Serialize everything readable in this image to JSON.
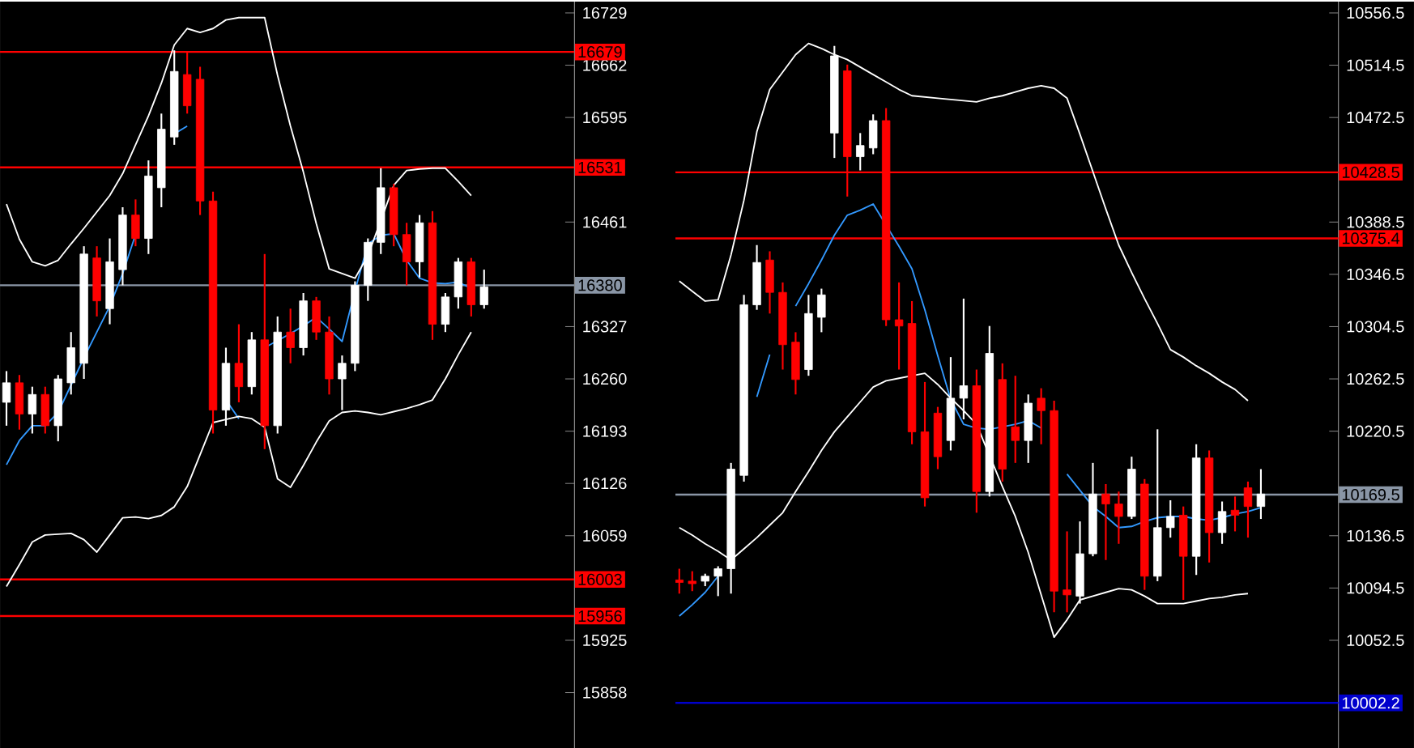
{
  "chart_data": [
    {
      "type": "candlestick",
      "categories": [
        null,
        null,
        null,
        null,
        null,
        null,
        null,
        null,
        null,
        null,
        null,
        null,
        null,
        null,
        null,
        null,
        null,
        null,
        null,
        null,
        null,
        null,
        null,
        null,
        null,
        null,
        null,
        null,
        null,
        null,
        null,
        null,
        null,
        null,
        null,
        null,
        null,
        null
      ],
      "ohlc": [
        [
          16230,
          16270,
          16200,
          16255
        ],
        [
          16255,
          16265,
          16195,
          16215
        ],
        [
          16215,
          16250,
          16190,
          16240
        ],
        [
          16240,
          16250,
          16190,
          16200
        ],
        [
          16200,
          16265,
          16180,
          16260
        ],
        [
          16255,
          16320,
          16240,
          16300
        ],
        [
          16280,
          16430,
          16260,
          16420
        ],
        [
          16415,
          16430,
          16340,
          16360
        ],
        [
          16350,
          16440,
          16330,
          16410
        ],
        [
          16400,
          16480,
          16380,
          16470
        ],
        [
          16470,
          16490,
          16430,
          16440
        ],
        [
          16440,
          16540,
          16420,
          16520
        ],
        [
          16505,
          16600,
          16480,
          16580
        ],
        [
          16570,
          16681,
          16560,
          16654
        ],
        [
          16650,
          16680,
          16600,
          16610
        ],
        [
          16644,
          16660,
          16470,
          16488
        ],
        [
          16488,
          16500,
          16190,
          16220
        ],
        [
          16220,
          16300,
          16200,
          16280
        ],
        [
          16280,
          16330,
          16230,
          16250
        ],
        [
          16250,
          16320,
          16240,
          16310
        ],
        [
          16310,
          16420,
          16170,
          16200
        ],
        [
          16200,
          16340,
          16190,
          16320
        ],
        [
          16320,
          16350,
          16280,
          16300
        ],
        [
          16300,
          16370,
          16290,
          16360
        ],
        [
          16360,
          16365,
          16310,
          16320
        ],
        [
          16320,
          16340,
          16240,
          16260
        ],
        [
          16260,
          16290,
          16220,
          16280
        ],
        [
          16280,
          16385,
          16270,
          16380
        ],
        [
          16380,
          16440,
          16360,
          16435
        ],
        [
          16435,
          16530,
          16420,
          16505
        ],
        [
          16505,
          16510,
          16430,
          16445
        ],
        [
          16445,
          16460,
          16380,
          16410
        ],
        [
          16410,
          16470,
          16390,
          16460
        ],
        [
          16460,
          16475,
          16310,
          16330
        ],
        [
          16330,
          16370,
          16320,
          16365
        ],
        [
          16365,
          16415,
          16350,
          16410
        ],
        [
          16410,
          16415,
          16340,
          16355
        ],
        [
          16355,
          16400,
          16350,
          16378
        ]
      ],
      "colors": [
        "#ffffff",
        "#ff0000",
        "#ffffff",
        "#ff0000",
        "#ffffff",
        "#ffffff",
        "#ffffff",
        "#ff0000",
        "#ffffff",
        "#ffffff",
        "#ff0000",
        "#ffffff",
        "#ffffff",
        "#ffffff",
        "#ff0000",
        "#ff0000",
        "#ff0000",
        "#ffffff",
        "#ff0000",
        "#ffffff",
        "#ff0000",
        "#ffffff",
        "#ff0000",
        "#ffffff",
        "#ff0000",
        "#ff0000",
        "#ffffff",
        "#ffffff",
        "#ffffff",
        "#ffffff",
        "#ff0000",
        "#ff0000",
        "#ffffff",
        "#ff0000",
        "#ffffff",
        "#ffffff",
        "#ff0000",
        "#ffffff"
      ],
      "series": [
        {
          "type": "line",
          "color": "#3399ff",
          "values": [
            16150,
            16181,
            16200,
            16200,
            16217,
            16252,
            16287,
            16320,
            16353,
            16395,
            16445,
            null,
            null,
            16574,
            16584,
            null,
            null,
            16233,
            16209,
            null,
            16300,
            16309,
            16318,
            16328,
            16339,
            16324,
            16308,
            16373,
            16433,
            16444,
            16446,
            16412,
            16389,
            16383,
            16382,
            16384,
            16376,
            null
          ]
        },
        {
          "type": "line",
          "color": "#ffffff",
          "values": [
            16484,
            16439,
            16410,
            16405,
            16412,
            16433,
            16453,
            16474,
            16495,
            16523,
            16560,
            16597,
            16639,
            16688,
            16709,
            16704,
            16709,
            16720,
            16723,
            16723,
            16723,
            16649,
            16584,
            16525,
            16459,
            16401,
            16395,
            16389,
            16418,
            16463,
            16508,
            16527,
            16529,
            16530,
            16530,
            16513,
            16495,
            null
          ]
        },
        {
          "type": "line",
          "color": "#ffffff",
          "values": [
            15994,
            16022,
            16051,
            16060,
            16061,
            16062,
            16054,
            16038,
            16060,
            16082,
            16083,
            16081,
            16085,
            16096,
            16122,
            16163,
            16204,
            16208,
            16212,
            16209,
            16198,
            16132,
            16121,
            16149,
            16179,
            16206,
            16217,
            16219,
            16217,
            16214,
            16218,
            16222,
            16227,
            16233,
            16260,
            16291,
            16320,
            null
          ]
        }
      ],
      "ylim": [
        15787,
        16743.5
      ],
      "yticks": [
        16729,
        16662,
        16595,
        16461,
        16327,
        16260,
        16193,
        16126,
        16059,
        15925,
        15858
      ],
      "ref_lines": [
        {
          "axis": "y",
          "value": 16679,
          "label": "16679",
          "color": "#ff0000"
        },
        {
          "axis": "y",
          "value": 16531,
          "label": "16531",
          "color": "#ff0000"
        },
        {
          "axis": "y",
          "value": 16380,
          "label": "16380",
          "color": "#8a96a6"
        },
        {
          "axis": "y",
          "value": 16003,
          "label": "16003",
          "color": "#ff0000"
        },
        {
          "axis": "y",
          "value": 15956,
          "label": "15956",
          "color": "#ff0000"
        }
      ],
      "tick_labels": "y"
    },
    {
      "type": "candlestick",
      "categories": [
        null,
        null,
        null,
        null,
        null,
        null,
        null,
        null,
        null,
        null,
        null,
        null,
        null,
        null,
        null,
        null,
        null,
        null,
        null,
        null,
        null,
        null,
        null,
        null,
        null,
        null,
        null,
        null,
        null,
        null,
        null,
        null,
        null,
        null,
        null,
        null,
        null,
        null,
        null,
        null,
        null,
        null,
        null,
        null,
        null,
        null
      ],
      "ohlc": [
        [
          10101,
          10110,
          10090,
          10099
        ],
        [
          10100,
          10108,
          10092,
          10098
        ],
        [
          10100,
          10106,
          10096,
          10104
        ],
        [
          10104,
          10112,
          10088,
          10110
        ],
        [
          10110,
          10195,
          10090,
          10190
        ],
        [
          10185,
          10330,
          10180,
          10322
        ],
        [
          10322,
          10370,
          10318,
          10356
        ],
        [
          10358,
          10365,
          10315,
          10332
        ],
        [
          10332,
          10340,
          10270,
          10290
        ],
        [
          10292,
          10300,
          10250,
          10262
        ],
        [
          10270,
          10330,
          10265,
          10315
        ],
        [
          10312,
          10335,
          10300,
          10330
        ],
        [
          10460,
          10530,
          10440,
          10522
        ],
        [
          10510,
          10515,
          10409,
          10441
        ],
        [
          10441,
          10460,
          10430,
          10450
        ],
        [
          10448,
          10475,
          10443,
          10470
        ],
        [
          10470,
          10480,
          10305,
          10310
        ],
        [
          10310,
          10340,
          10270,
          10305
        ],
        [
          10307,
          10325,
          10210,
          10220
        ],
        [
          10220,
          10260,
          10160,
          10167
        ],
        [
          10235,
          10240,
          10190,
          10200
        ],
        [
          10213,
          10280,
          10205,
          10247
        ],
        [
          10247,
          10327,
          10230,
          10257
        ],
        [
          10257,
          10270,
          10155,
          10172
        ],
        [
          10172,
          10305,
          10168,
          10283
        ],
        [
          10262,
          10275,
          10180,
          10190
        ],
        [
          10224,
          10265,
          10195,
          10213
        ],
        [
          10213,
          10250,
          10195,
          10243
        ],
        [
          10247,
          10255,
          10210,
          10237
        ],
        [
          10237,
          10245,
          10075,
          10092
        ],
        [
          10093,
          10140,
          10075,
          10089
        ],
        [
          10088,
          10148,
          10082,
          10122
        ],
        [
          10122,
          10195,
          10120,
          10170
        ],
        [
          10170,
          10178,
          10117,
          10162
        ],
        [
          10162,
          10172,
          10130,
          10152
        ],
        [
          10152,
          10200,
          10150,
          10190
        ],
        [
          10178,
          10182,
          10093,
          10104
        ],
        [
          10104,
          10222,
          10100,
          10143
        ],
        [
          10143,
          10165,
          10135,
          10152
        ],
        [
          10153,
          10160,
          10085,
          10120
        ],
        [
          10120,
          10210,
          10105,
          10199
        ],
        [
          10199,
          10205,
          10115,
          10139
        ],
        [
          10139,
          10164,
          10130,
          10156
        ],
        [
          10157,
          10168,
          10140,
          10153
        ],
        [
          10175,
          10180,
          10135,
          10160
        ],
        [
          10160,
          10190,
          10150,
          10170
        ]
      ],
      "colors": [
        "#ff0000",
        "#ff0000",
        "#ffffff",
        "#ffffff",
        "#ffffff",
        "#ffffff",
        "#ffffff",
        "#ff0000",
        "#ff0000",
        "#ff0000",
        "#ffffff",
        "#ffffff",
        "#ffffff",
        "#ff0000",
        "#ffffff",
        "#ffffff",
        "#ff0000",
        "#ff0000",
        "#ff0000",
        "#ff0000",
        "#ff0000",
        "#ffffff",
        "#ffffff",
        "#ff0000",
        "#ffffff",
        "#ff0000",
        "#ff0000",
        "#ffffff",
        "#ff0000",
        "#ff0000",
        "#ff0000",
        "#ffffff",
        "#ffffff",
        "#ff0000",
        "#ff0000",
        "#ffffff",
        "#ff0000",
        "#ffffff",
        "#ffffff",
        "#ff0000",
        "#ffffff",
        "#ff0000",
        "#ffffff",
        "#ff0000",
        "#ff0000",
        "#ffffff"
      ],
      "series": [
        {
          "type": "line",
          "color": "#3399ff",
          "values": [
            10072,
            10081,
            10091,
            10104,
            null,
            null,
            10248,
            10282,
            null,
            10321,
            10339,
            10358,
            10378,
            10394,
            10398,
            10403,
            10386,
            10369,
            10351,
            10318,
            10281,
            10246,
            10226,
            10223,
            10222,
            10224,
            10226,
            10229,
            10223,
            null,
            10186,
            10173,
            10160,
            10152,
            10143,
            10144,
            10148,
            10151,
            10152,
            10152,
            10150,
            10149,
            10151,
            10154,
            10156,
            10159
          ]
        },
        {
          "type": "line",
          "color": "#ffffff",
          "values": [
            10341,
            10333,
            10325,
            10326,
            10362,
            10406,
            10461,
            10495,
            10509,
            10523,
            10532,
            10528,
            10523,
            10519,
            10513,
            10507,
            10501,
            10495,
            10490,
            10489,
            10488,
            10487,
            10486,
            10485,
            10488,
            10490,
            10493,
            10496,
            10498,
            10496,
            10488,
            10459,
            10429,
            10399,
            10370,
            10348,
            10327,
            10307,
            10286,
            10280,
            10273,
            10267,
            10260,
            10254,
            10245,
            null
          ]
        },
        {
          "type": "line",
          "color": "#ffffff",
          "values": [
            10143,
            10137,
            10130,
            10124,
            10117,
            10126,
            10135,
            10145,
            10155,
            10172,
            10188,
            10205,
            10220,
            10232,
            10244,
            10256,
            10261,
            10263,
            10265,
            10267,
            10258,
            10247,
            10237,
            10226,
            10201,
            10176,
            10152,
            10123,
            10089,
            10055,
            10069,
            10085,
            10088,
            10091,
            10094,
            10093,
            10088,
            10082,
            10082,
            10082,
            10084,
            10086,
            10087,
            10089,
            10090,
            null
          ]
        }
      ],
      "ylim": [
        9966,
        10565.6
      ],
      "yticks": [
        10556.5,
        10514.5,
        10472.5,
        10388.5,
        10346.5,
        10304.5,
        10262.5,
        10220.5,
        10136.5,
        10094.5,
        10052.5
      ],
      "ref_lines": [
        {
          "axis": "y",
          "value": 10428.5,
          "label": "10428.5",
          "color": "#ff0000"
        },
        {
          "axis": "y",
          "value": 10375.4,
          "label": "10375.4",
          "color": "#ff0000"
        },
        {
          "axis": "y",
          "value": 10169.5,
          "label": "10169.5",
          "color": "#8a96a6"
        },
        {
          "axis": "y",
          "value": 10002.2,
          "label": "10002.2",
          "color": "#0000cc"
        }
      ],
      "tick_labels": "y"
    }
  ]
}
